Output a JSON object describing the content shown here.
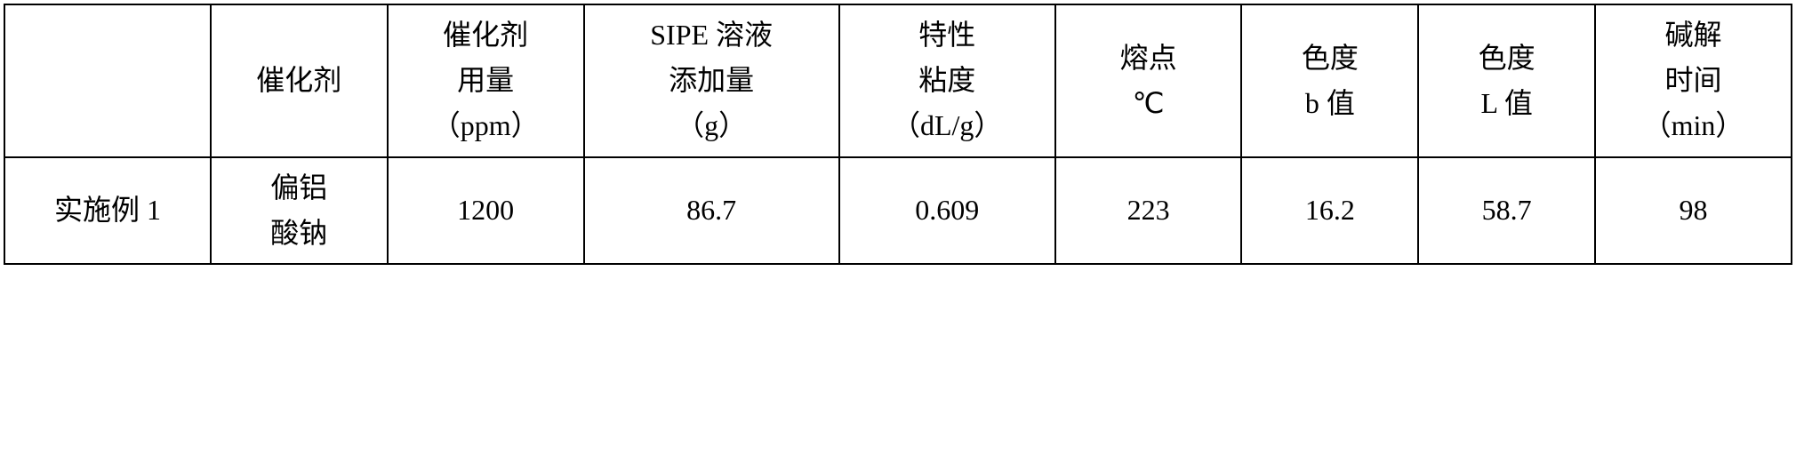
{
  "table": {
    "type": "table",
    "background_color": "#ffffff",
    "border_color": "#000000",
    "border_width": 2,
    "font_family": "SimSun",
    "header_fontsize": 32,
    "data_fontsize": 32,
    "columns": [
      {
        "label": "",
        "width_pct": 10.5
      },
      {
        "label": "催化剂",
        "width_pct": 9
      },
      {
        "label": "催化剂\n用量\n（ppm）",
        "width_pct": 10
      },
      {
        "label": "SIPE 溶液\n添加量\n（g）",
        "width_pct": 13
      },
      {
        "label": "特性\n粘度\n（dL/g）",
        "width_pct": 11
      },
      {
        "label": "熔点\n℃",
        "width_pct": 9.5
      },
      {
        "label": "色度\nb 值",
        "width_pct": 9
      },
      {
        "label": "色度\nL 值",
        "width_pct": 9
      },
      {
        "label": "碱解\n时间\n（min）",
        "width_pct": 10
      }
    ],
    "headers": {
      "h0": "",
      "h1": "催化剂",
      "h2_l1": "催化剂",
      "h2_l2": "用量",
      "h2_l3": "（ppm）",
      "h3_l1": "SIPE 溶液",
      "h3_l2": "添加量",
      "h3_l3": "（g）",
      "h4_l1": "特性",
      "h4_l2": "粘度",
      "h4_l3": "（dL/g）",
      "h5_l1": "熔点",
      "h5_l2": "℃",
      "h6_l1": "色度",
      "h6_l2": "b 值",
      "h7_l1": "色度",
      "h7_l2": "L 值",
      "h8_l1": "碱解",
      "h8_l2": "时间",
      "h8_l3": "（min）"
    },
    "rows": [
      {
        "c0": "实施例 1",
        "c1_l1": "偏铝",
        "c1_l2": "酸钠",
        "c2": "1200",
        "c3": "86.7",
        "c4": "0.609",
        "c5": "223",
        "c6": "16.2",
        "c7": "58.7",
        "c8": "98"
      }
    ]
  }
}
